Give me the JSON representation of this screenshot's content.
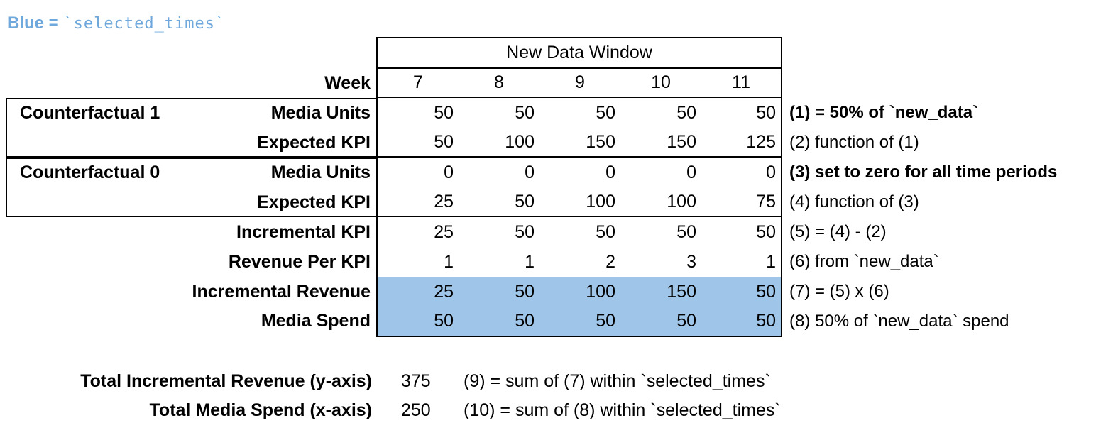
{
  "legend": {
    "prefix": "Blue = ",
    "code": "`selected_times`",
    "text_color": "#6FA8DC"
  },
  "table": {
    "window_header": "New Data Window",
    "week_label": "Week",
    "weeks": [
      "7",
      "8",
      "9",
      "10",
      "11"
    ],
    "highlight_color": "#9FC5E8",
    "groups": [
      {
        "label": "Counterfactual 1"
      },
      {
        "label": "Counterfactual 0"
      }
    ],
    "rows": [
      {
        "label": "Media Units",
        "values": [
          "50",
          "50",
          "50",
          "50",
          "50"
        ],
        "note": "(1) = 50% of `new_data`",
        "note_bold": true,
        "highlight": false
      },
      {
        "label": "Expected KPI",
        "values": [
          "50",
          "100",
          "150",
          "150",
          "125"
        ],
        "note": "(2) function of (1)",
        "note_bold": false,
        "highlight": false
      },
      {
        "label": "Media Units",
        "values": [
          "0",
          "0",
          "0",
          "0",
          "0"
        ],
        "note": "(3) set to zero for all time periods",
        "note_bold": true,
        "highlight": false
      },
      {
        "label": "Expected KPI",
        "values": [
          "25",
          "50",
          "100",
          "100",
          "75"
        ],
        "note": "(4) function of (3)",
        "note_bold": false,
        "highlight": false
      },
      {
        "label": "Incremental KPI",
        "values": [
          "25",
          "50",
          "50",
          "50",
          "50"
        ],
        "note": "(5) = (4) - (2)",
        "note_bold": false,
        "highlight": false
      },
      {
        "label": "Revenue Per KPI",
        "values": [
          "1",
          "1",
          "2",
          "3",
          "1"
        ],
        "note": "(6) from `new_data`",
        "note_bold": false,
        "highlight": false
      },
      {
        "label": "Incremental Revenue",
        "values": [
          "25",
          "50",
          "100",
          "150",
          "50"
        ],
        "note": "(7) = (5) x (6)",
        "note_bold": false,
        "highlight": true
      },
      {
        "label": "Media Spend",
        "values": [
          "50",
          "50",
          "50",
          "50",
          "50"
        ],
        "note": "(8) 50% of `new_data` spend",
        "note_bold": false,
        "highlight": true
      }
    ]
  },
  "totals": [
    {
      "label": "Total Incremental Revenue (y-axis)",
      "value": "375",
      "note": "(9) = sum of (7) within `selected_times`"
    },
    {
      "label": "Total Media Spend (x-axis)",
      "value": "250",
      "note": "(10) = sum of (8) within `selected_times`"
    }
  ]
}
